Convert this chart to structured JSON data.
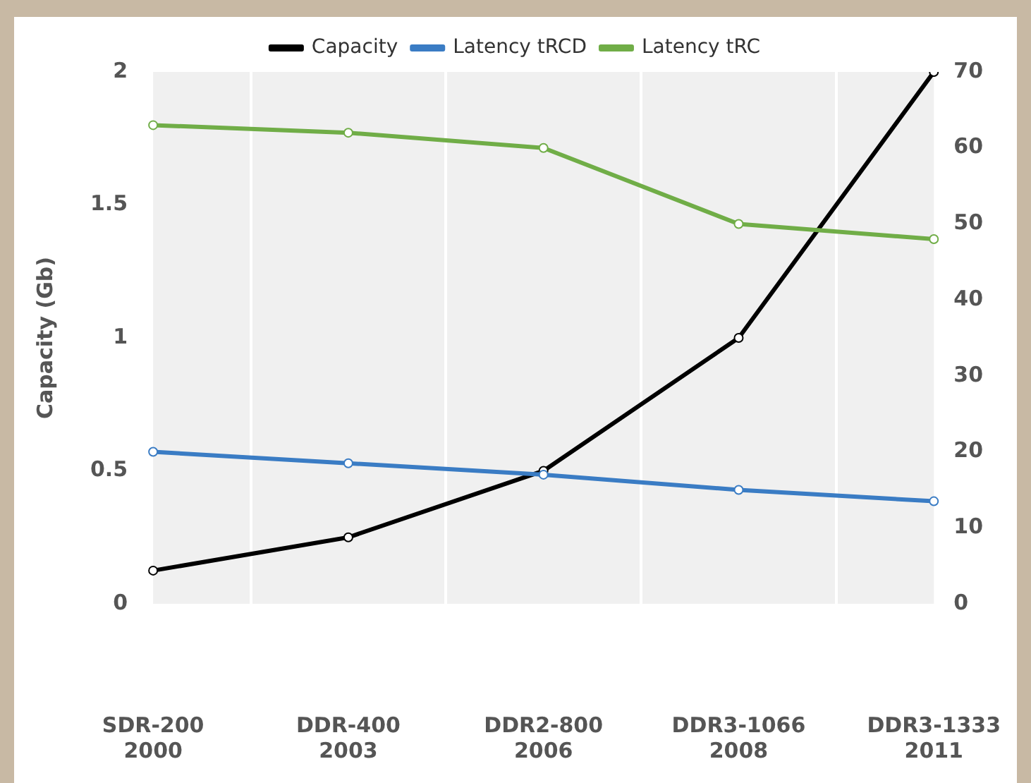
{
  "chart_data": {
    "type": "line",
    "categories": [
      "SDR-200\n2000",
      "DDR-400\n2003",
      "DDR2-800\n2006",
      "DDR3-1066\n2008",
      "DDR3-1333\n2011"
    ],
    "series": [
      {
        "name": "Capacity",
        "color": "#000000",
        "values": [
          0.125,
          0.25,
          0.5,
          1,
          2
        ]
      },
      {
        "name": "Latency tRCD",
        "color": "#3a7cc4",
        "values": [
          20,
          18.5,
          17,
          15,
          13.5
        ],
        "axis": "y2"
      },
      {
        "name": "Latency tRC",
        "color": "#70ad47",
        "values": [
          63,
          62,
          60,
          50,
          48
        ],
        "axis": "y2"
      }
    ],
    "ylabel": "Capacity (Gb)",
    "ylim": [
      0,
      2
    ],
    "yticks": [
      0,
      0.5,
      1,
      1.5,
      2
    ],
    "y2lim": [
      0,
      70
    ],
    "y2ticks": [
      0,
      10,
      20,
      30,
      40,
      50,
      60,
      70
    ],
    "grid": "x",
    "legend": "top",
    "marker": "circle",
    "line_style": "solid"
  }
}
